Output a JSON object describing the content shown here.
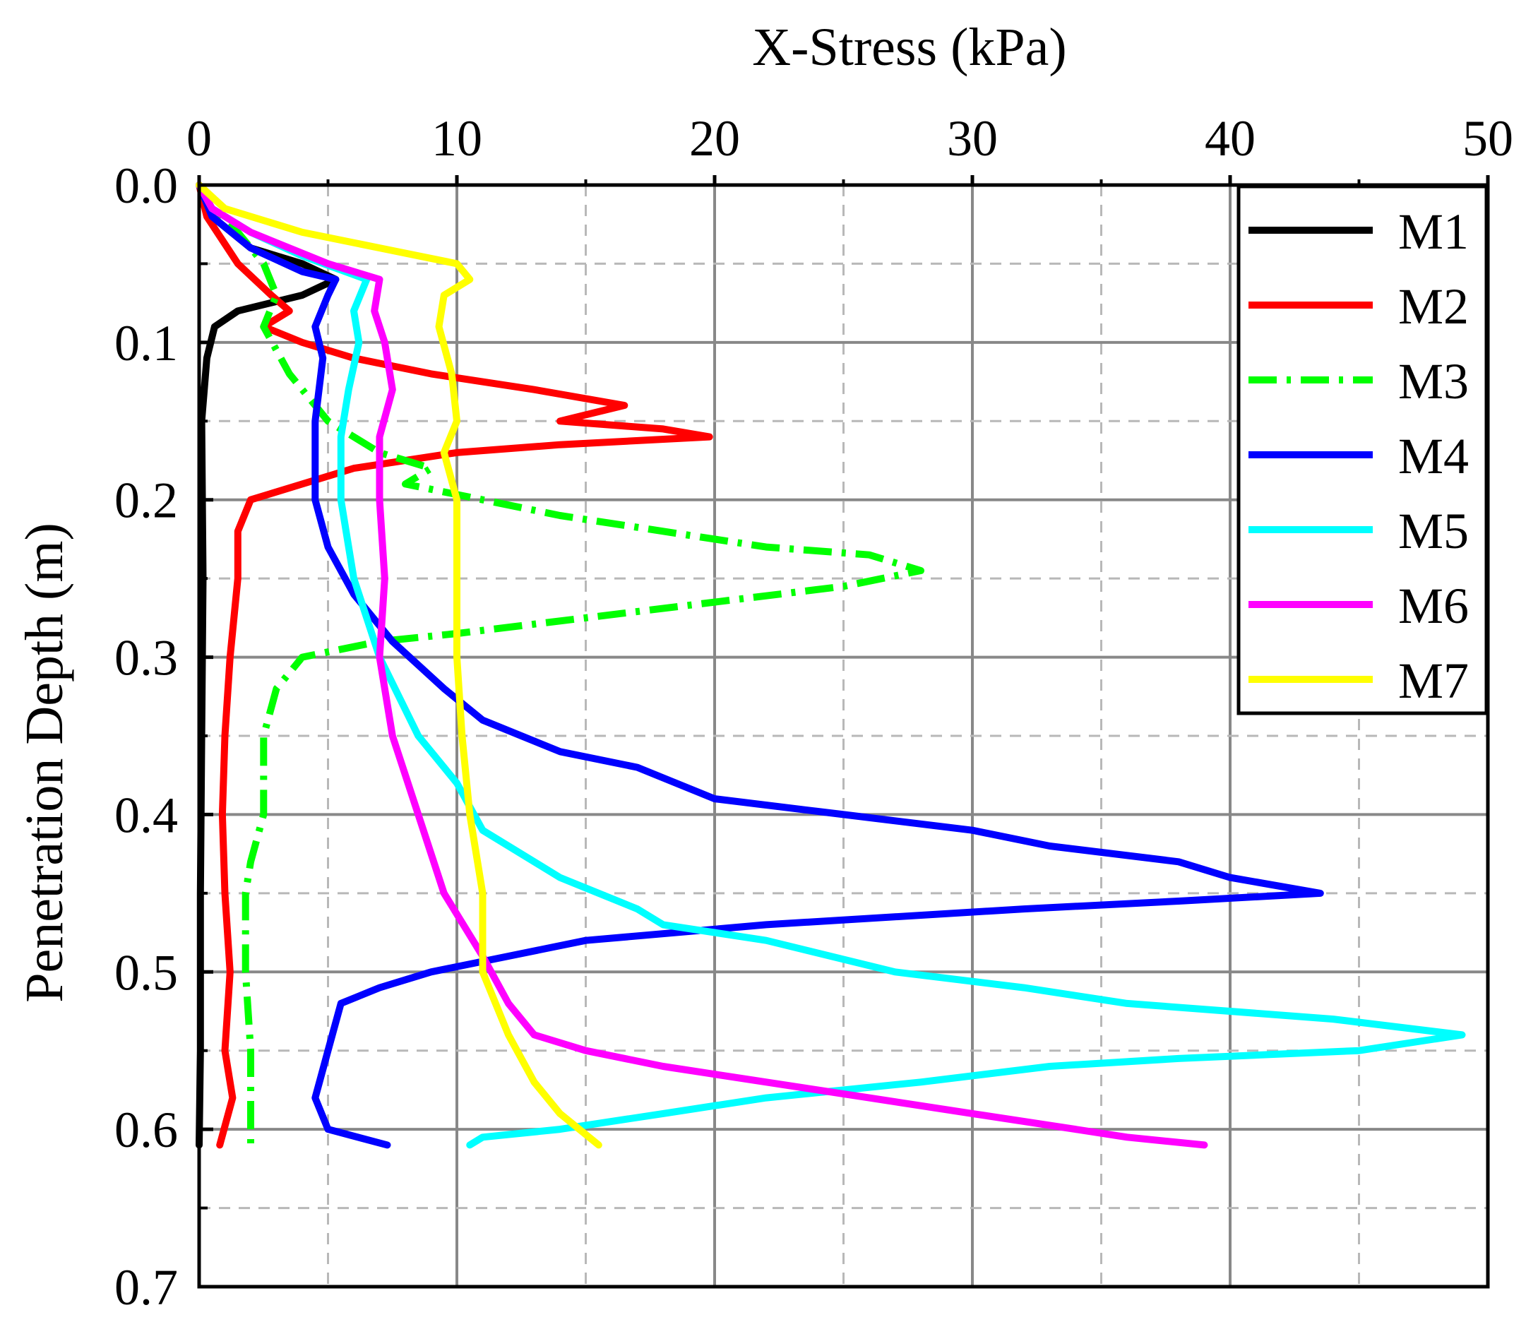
{
  "chart_data": {
    "type": "line",
    "title": "",
    "xlabel": "X-Stress (kPa)",
    "ylabel": "Penetration Depth (m)",
    "xlim": [
      0,
      50
    ],
    "ylim": [
      0,
      0.7
    ],
    "y_inverted": true,
    "x_axis_position": "top",
    "xticks": [
      0,
      10,
      20,
      30,
      40,
      50
    ],
    "yticks": [
      0.0,
      0.1,
      0.2,
      0.3,
      0.4,
      0.5,
      0.6,
      0.7
    ],
    "xtick_labels": [
      "0",
      "10",
      "20",
      "30",
      "40",
      "50"
    ],
    "ytick_labels": [
      "0.0",
      "0.1",
      "0.2",
      "0.3",
      "0.4",
      "0.5",
      "0.6",
      "0.7"
    ],
    "grid": true,
    "legend_position": "top-right",
    "series": [
      {
        "name": "M1",
        "color": "#000000",
        "dash": "solid",
        "points": [
          [
            0,
            0
          ],
          [
            0.5,
            0.02
          ],
          [
            2,
            0.04
          ],
          [
            4,
            0.05
          ],
          [
            5.3,
            0.06
          ],
          [
            4,
            0.07
          ],
          [
            1.5,
            0.08
          ],
          [
            0.6,
            0.09
          ],
          [
            0.3,
            0.11
          ],
          [
            0.1,
            0.15
          ],
          [
            0.15,
            0.25
          ],
          [
            0.1,
            0.35
          ],
          [
            0.05,
            0.45
          ],
          [
            0.05,
            0.55
          ],
          [
            0,
            0.61
          ]
        ]
      },
      {
        "name": "M2",
        "color": "#ff0000",
        "dash": "solid",
        "points": [
          [
            0,
            0
          ],
          [
            0.3,
            0.02
          ],
          [
            1.5,
            0.05
          ],
          [
            2.8,
            0.07
          ],
          [
            3.5,
            0.08
          ],
          [
            2.5,
            0.09
          ],
          [
            4,
            0.1
          ],
          [
            6,
            0.11
          ],
          [
            9,
            0.12
          ],
          [
            13,
            0.13
          ],
          [
            16.5,
            0.14
          ],
          [
            14,
            0.15
          ],
          [
            18,
            0.155
          ],
          [
            19.8,
            0.16
          ],
          [
            14,
            0.165
          ],
          [
            10,
            0.17
          ],
          [
            6,
            0.18
          ],
          [
            4,
            0.19
          ],
          [
            2,
            0.2
          ],
          [
            1.5,
            0.22
          ],
          [
            1.5,
            0.25
          ],
          [
            1.2,
            0.3
          ],
          [
            1,
            0.35
          ],
          [
            0.9,
            0.4
          ],
          [
            1,
            0.45
          ],
          [
            1.2,
            0.5
          ],
          [
            1,
            0.55
          ],
          [
            1.3,
            0.58
          ],
          [
            0.8,
            0.61
          ]
        ]
      },
      {
        "name": "M3",
        "color": "#00ff00",
        "dash": "dashdot",
        "points": [
          [
            0,
            0
          ],
          [
            0.5,
            0.02
          ],
          [
            1.5,
            0.03
          ],
          [
            2.5,
            0.05
          ],
          [
            3,
            0.07
          ],
          [
            2.5,
            0.09
          ],
          [
            3.5,
            0.12
          ],
          [
            5,
            0.15
          ],
          [
            7,
            0.17
          ],
          [
            9,
            0.18
          ],
          [
            8,
            0.19
          ],
          [
            11,
            0.2
          ],
          [
            14,
            0.21
          ],
          [
            18,
            0.22
          ],
          [
            22,
            0.23
          ],
          [
            26,
            0.235
          ],
          [
            28,
            0.245
          ],
          [
            25,
            0.255
          ],
          [
            20,
            0.265
          ],
          [
            15,
            0.275
          ],
          [
            10,
            0.285
          ],
          [
            7,
            0.29
          ],
          [
            4,
            0.3
          ],
          [
            3,
            0.32
          ],
          [
            2.5,
            0.35
          ],
          [
            2.5,
            0.38
          ],
          [
            2.5,
            0.4
          ],
          [
            2,
            0.43
          ],
          [
            1.8,
            0.45
          ],
          [
            1.8,
            0.5
          ],
          [
            2,
            0.55
          ],
          [
            2,
            0.58
          ],
          [
            2,
            0.61
          ]
        ]
      },
      {
        "name": "M4",
        "color": "#0000ff",
        "dash": "solid",
        "points": [
          [
            0,
            0
          ],
          [
            0.5,
            0.02
          ],
          [
            2,
            0.04
          ],
          [
            4,
            0.055
          ],
          [
            5.3,
            0.06
          ],
          [
            5,
            0.07
          ],
          [
            4.5,
            0.09
          ],
          [
            4.8,
            0.11
          ],
          [
            4.5,
            0.15
          ],
          [
            4.5,
            0.2
          ],
          [
            5,
            0.23
          ],
          [
            6,
            0.26
          ],
          [
            7.5,
            0.29
          ],
          [
            9.5,
            0.32
          ],
          [
            11,
            0.34
          ],
          [
            14,
            0.36
          ],
          [
            17,
            0.37
          ],
          [
            20,
            0.39
          ],
          [
            25,
            0.4
          ],
          [
            30,
            0.41
          ],
          [
            33,
            0.42
          ],
          [
            38,
            0.43
          ],
          [
            40,
            0.44
          ],
          [
            43.5,
            0.45
          ],
          [
            38,
            0.455
          ],
          [
            32,
            0.46
          ],
          [
            22,
            0.47
          ],
          [
            15,
            0.48
          ],
          [
            12,
            0.49
          ],
          [
            9,
            0.5
          ],
          [
            7,
            0.51
          ],
          [
            5.5,
            0.52
          ],
          [
            5,
            0.55
          ],
          [
            4.5,
            0.58
          ],
          [
            5,
            0.6
          ],
          [
            7.3,
            0.61
          ]
        ]
      },
      {
        "name": "M5",
        "color": "#00ffff",
        "dash": "solid",
        "points": [
          [
            0,
            0
          ],
          [
            0.5,
            0.015
          ],
          [
            2,
            0.03
          ],
          [
            4,
            0.045
          ],
          [
            6.5,
            0.06
          ],
          [
            6,
            0.08
          ],
          [
            6.2,
            0.1
          ],
          [
            5.8,
            0.13
          ],
          [
            5.5,
            0.16
          ],
          [
            5.5,
            0.2
          ],
          [
            6,
            0.25
          ],
          [
            7,
            0.3
          ],
          [
            8.5,
            0.35
          ],
          [
            10,
            0.38
          ],
          [
            11,
            0.41
          ],
          [
            14,
            0.44
          ],
          [
            17,
            0.46
          ],
          [
            18,
            0.47
          ],
          [
            22,
            0.48
          ],
          [
            27,
            0.5
          ],
          [
            32,
            0.51
          ],
          [
            36,
            0.52
          ],
          [
            44,
            0.53
          ],
          [
            49,
            0.54
          ],
          [
            45,
            0.55
          ],
          [
            38,
            0.555
          ],
          [
            33,
            0.56
          ],
          [
            28,
            0.57
          ],
          [
            22,
            0.58
          ],
          [
            18,
            0.59
          ],
          [
            14,
            0.6
          ],
          [
            11,
            0.605
          ],
          [
            10.5,
            0.61
          ]
        ]
      },
      {
        "name": "M6",
        "color": "#ff00ff",
        "dash": "solid",
        "points": [
          [
            0,
            0
          ],
          [
            0.5,
            0.015
          ],
          [
            2,
            0.03
          ],
          [
            5,
            0.05
          ],
          [
            7,
            0.06
          ],
          [
            6.8,
            0.08
          ],
          [
            7.2,
            0.1
          ],
          [
            7.5,
            0.13
          ],
          [
            7,
            0.16
          ],
          [
            7,
            0.2
          ],
          [
            7.2,
            0.25
          ],
          [
            7,
            0.3
          ],
          [
            7.5,
            0.35
          ],
          [
            8.5,
            0.4
          ],
          [
            9.5,
            0.45
          ],
          [
            11,
            0.49
          ],
          [
            12,
            0.52
          ],
          [
            13,
            0.54
          ],
          [
            15,
            0.55
          ],
          [
            18,
            0.56
          ],
          [
            22,
            0.57
          ],
          [
            26,
            0.58
          ],
          [
            30,
            0.59
          ],
          [
            34,
            0.6
          ],
          [
            36,
            0.605
          ],
          [
            39,
            0.61
          ]
        ]
      },
      {
        "name": "M7",
        "color": "#ffff00",
        "dash": "solid",
        "points": [
          [
            0,
            0
          ],
          [
            1,
            0.015
          ],
          [
            4,
            0.03
          ],
          [
            7,
            0.04
          ],
          [
            10,
            0.05
          ],
          [
            10.5,
            0.06
          ],
          [
            9.5,
            0.07
          ],
          [
            9.3,
            0.09
          ],
          [
            9.8,
            0.12
          ],
          [
            10,
            0.15
          ],
          [
            9.5,
            0.17
          ],
          [
            10,
            0.2
          ],
          [
            10,
            0.25
          ],
          [
            10,
            0.3
          ],
          [
            10.2,
            0.35
          ],
          [
            10.5,
            0.4
          ],
          [
            11,
            0.45
          ],
          [
            11,
            0.5
          ],
          [
            12,
            0.54
          ],
          [
            13,
            0.57
          ],
          [
            14,
            0.59
          ],
          [
            15.5,
            0.61
          ]
        ]
      }
    ]
  }
}
